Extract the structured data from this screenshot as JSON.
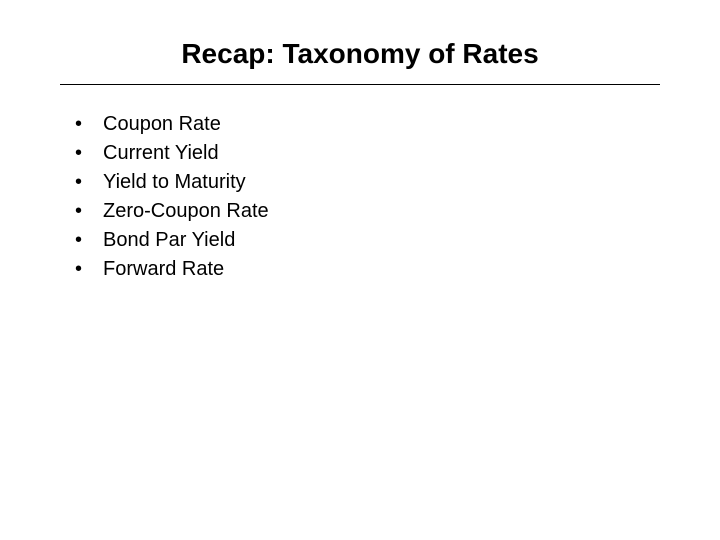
{
  "slide": {
    "title": "Recap: Taxonomy of Rates",
    "bullets": [
      "Coupon Rate",
      "Current Yield",
      "Yield to Maturity",
      "Zero-Coupon Rate",
      "Bond Par Yield",
      "Forward Rate"
    ],
    "bullet_marker": "•"
  },
  "style": {
    "background_color": "#ffffff",
    "title_color": "#000000",
    "title_fontsize": 28,
    "title_fontweight": "bold",
    "text_color": "#000000",
    "text_fontsize": 20,
    "divider_color": "#000000",
    "font_family": "Arial"
  }
}
